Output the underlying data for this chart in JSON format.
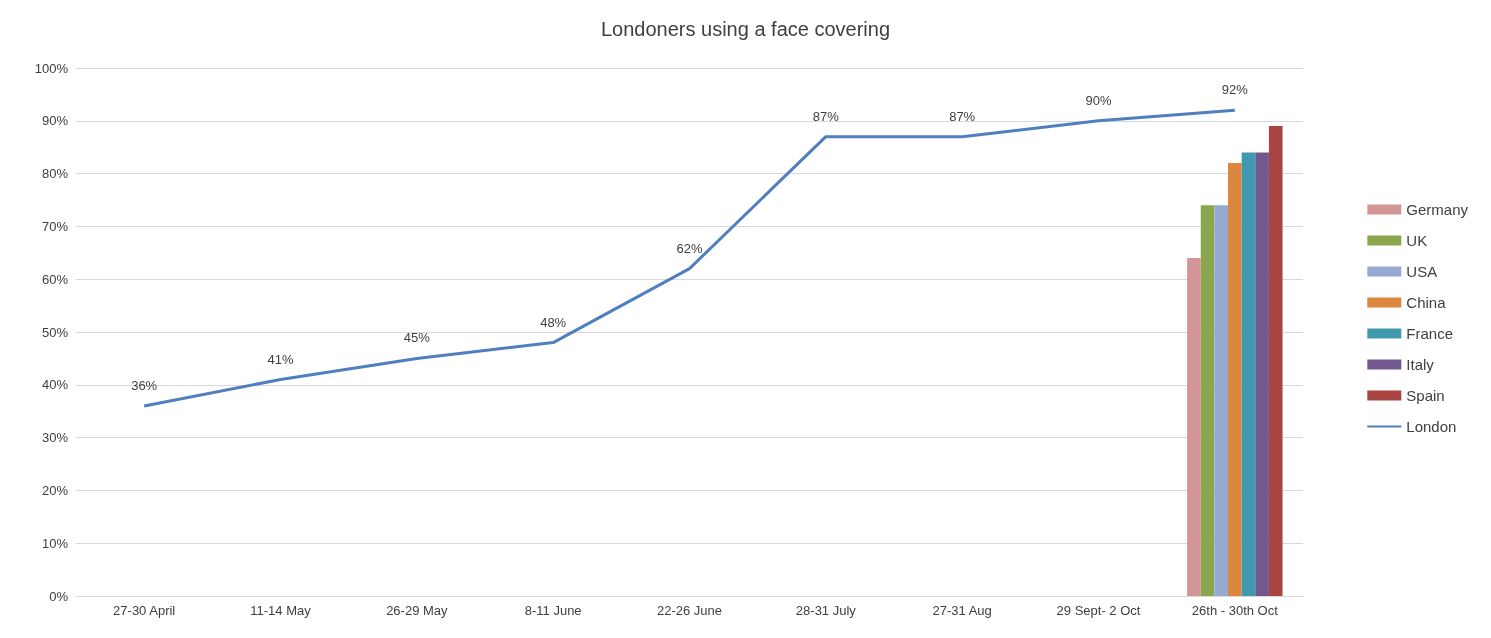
{
  "chart_data": {
    "type": "line",
    "title": "Londoners using a face covering",
    "categories": [
      "27-30 April",
      "11-14 May",
      "26-29 May",
      "8-11 June",
      "22-26 June",
      "28-31 July",
      "27-31 Aug",
      "29 Sept- 2 Oct",
      "26th - 30th Oct"
    ],
    "series": [
      {
        "name": "Germany",
        "type": "bar",
        "color": "#d39595",
        "values": [
          null,
          null,
          null,
          null,
          null,
          null,
          null,
          null,
          64
        ]
      },
      {
        "name": "UK",
        "type": "bar",
        "color": "#8ca64e",
        "values": [
          null,
          null,
          null,
          null,
          null,
          null,
          null,
          null,
          74
        ]
      },
      {
        "name": "USA",
        "type": "bar",
        "color": "#95a9d2",
        "values": [
          null,
          null,
          null,
          null,
          null,
          null,
          null,
          null,
          74
        ]
      },
      {
        "name": "China",
        "type": "bar",
        "color": "#dd863e",
        "values": [
          null,
          null,
          null,
          null,
          null,
          null,
          null,
          null,
          82
        ]
      },
      {
        "name": "France",
        "type": "bar",
        "color": "#4199b0",
        "values": [
          null,
          null,
          null,
          null,
          null,
          null,
          null,
          null,
          84
        ]
      },
      {
        "name": "Italy",
        "type": "bar",
        "color": "#72588f",
        "values": [
          null,
          null,
          null,
          null,
          null,
          null,
          null,
          null,
          84
        ]
      },
      {
        "name": "Spain",
        "type": "bar",
        "color": "#a84542",
        "values": [
          null,
          null,
          null,
          null,
          null,
          null,
          null,
          null,
          89
        ]
      },
      {
        "name": "London",
        "color": "#4f7fbf",
        "values": [
          36,
          41,
          45,
          48,
          62,
          87,
          87,
          90,
          92
        ],
        "value_labels": [
          "36%",
          "41%",
          "45%",
          "48%",
          "62%",
          "87%",
          "87%",
          "90%",
          "92%"
        ]
      }
    ],
    "ylim": [
      0,
      100
    ],
    "yticks": [
      {
        "value": 0,
        "label": "0%"
      },
      {
        "value": 10,
        "label": "10%"
      },
      {
        "value": 20,
        "label": "20%"
      },
      {
        "value": 30,
        "label": "30%"
      },
      {
        "value": 40,
        "label": "40%"
      },
      {
        "value": 50,
        "label": "50%"
      },
      {
        "value": 60,
        "label": "60%"
      },
      {
        "value": 70,
        "label": "70%"
      },
      {
        "value": 80,
        "label": "80%"
      },
      {
        "value": 90,
        "label": "90%"
      },
      {
        "value": 100,
        "label": "100%"
      }
    ],
    "grid": "y",
    "legend": "right",
    "marker": "none",
    "line_style": "solid"
  }
}
